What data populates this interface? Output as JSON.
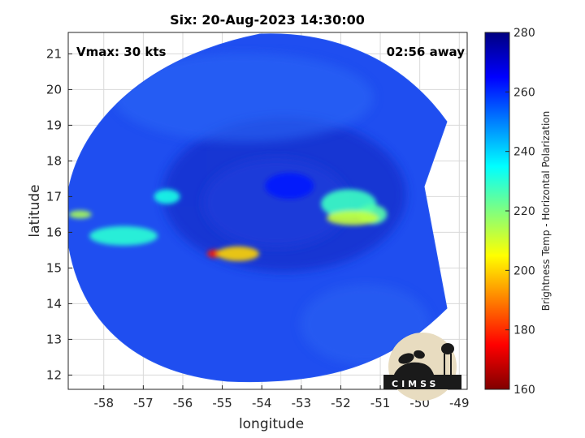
{
  "title": "Six: 20-Aug-2023 14:30:00",
  "vmax_label": "Vmax: 30 kts",
  "time_away": "02:56 away",
  "xlabel": "longitude",
  "ylabel": "latitude",
  "colorbar": {
    "label": "Brightness Temp - Horizontal Polarization",
    "range": [
      160,
      280
    ],
    "ticks": [
      "280",
      "260",
      "240",
      "220",
      "200",
      "180",
      "160"
    ]
  },
  "logo_text": "CIMSS",
  "chart_data": {
    "type": "heatmap",
    "x_range": [
      -58.9,
      -48.8
    ],
    "y_range": [
      11.6,
      21.6
    ],
    "x_ticks": [
      "-58",
      "-57",
      "-56",
      "-55",
      "-54",
      "-53",
      "-52",
      "-51",
      "-50",
      "-49"
    ],
    "y_ticks": [
      "21",
      "20",
      "19",
      "18",
      "17",
      "16",
      "15",
      "14",
      "13",
      "12"
    ],
    "grid": true,
    "colormap": "jet",
    "value_range": [
      160,
      280
    ],
    "features": [
      {
        "lon": -53.3,
        "lat": 17.3,
        "value": 262
      },
      {
        "lon": -51.8,
        "lat": 16.8,
        "value": 228
      },
      {
        "lon": -51.2,
        "lat": 16.5,
        "value": 225
      },
      {
        "lon": -51.7,
        "lat": 16.4,
        "value": 212
      },
      {
        "lon": -55.2,
        "lat": 15.4,
        "value": 178
      },
      {
        "lon": -54.6,
        "lat": 15.4,
        "value": 200
      },
      {
        "lon": -58.6,
        "lat": 16.5,
        "value": 215
      },
      {
        "lon": -57.5,
        "lat": 15.9,
        "value": 230
      },
      {
        "lon": -56.4,
        "lat": 17.0,
        "value": 232
      }
    ]
  }
}
